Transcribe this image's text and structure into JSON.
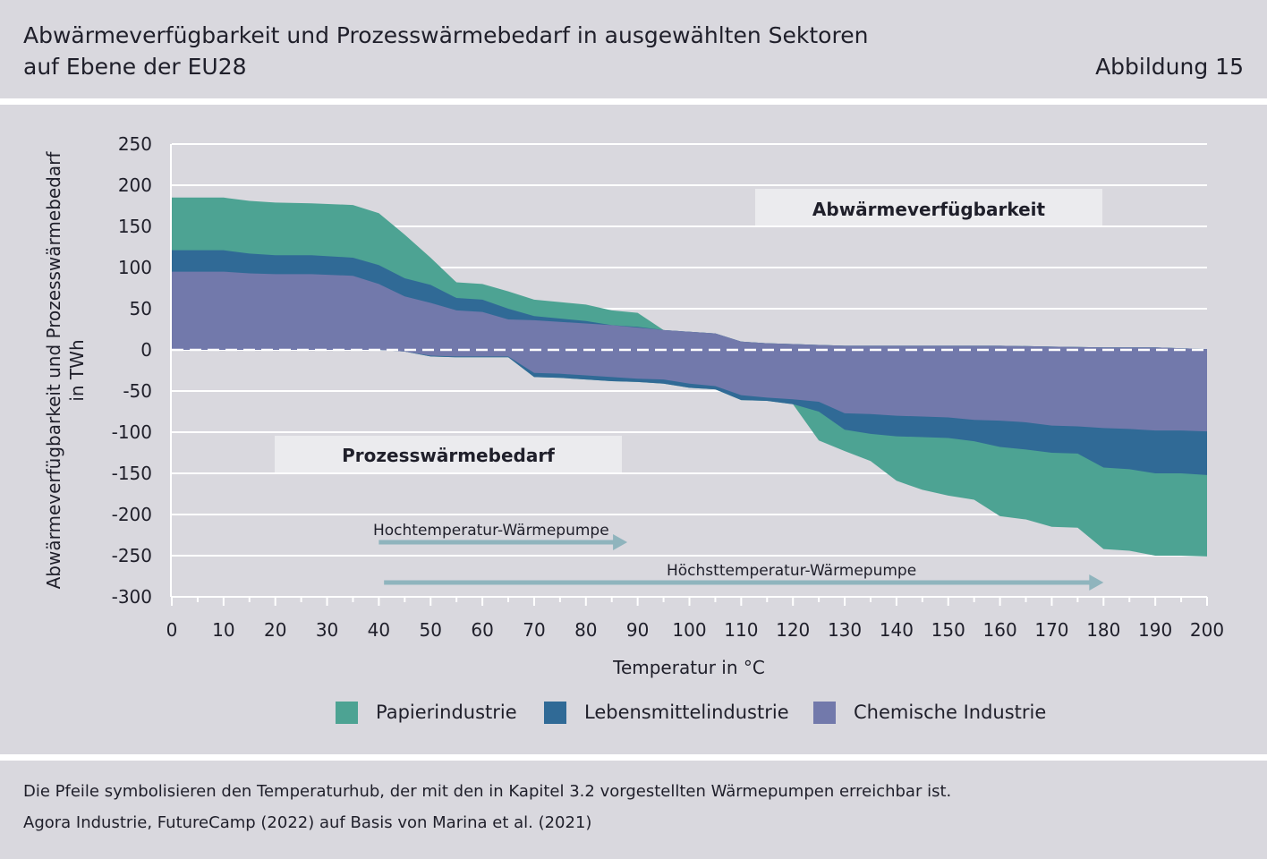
{
  "header": {
    "title_line1": "Abwärmeverfügbarkeit und Prozesswärmebedarf in ausgewählten Sektoren",
    "title_line2": "auf Ebene der EU28",
    "figure_label": "Abbildung 15"
  },
  "footer": {
    "note": "Die Pfeile symbolisieren den Temperaturhub, der mit den in Kapitel 3.2 vorgestellten Wärmepumpen erreichbar ist.",
    "source": "Agora Industrie, FutureCamp (2022) auf Basis von Marina et al. (2021)"
  },
  "chart_data": {
    "type": "area",
    "title": "Abwärmeverfügbarkeit und Prozesswärmebedarf in ausgewählten Sektoren auf Ebene der EU28",
    "xlabel": "Temperatur in °C",
    "ylabel_line1": "Abwärmeverfügbarkeit und Prozesswärmebedarf",
    "ylabel_line2": "in TWh",
    "xlim": [
      0,
      200
    ],
    "ylim": [
      -300,
      250
    ],
    "x_ticks": [
      0,
      10,
      20,
      30,
      40,
      50,
      60,
      70,
      80,
      90,
      100,
      110,
      120,
      130,
      140,
      150,
      160,
      170,
      180,
      190,
      200
    ],
    "y_ticks": [
      250,
      200,
      150,
      100,
      50,
      0,
      -50,
      -100,
      -150,
      -200,
      -250,
      -300
    ],
    "y_tick_labels": [
      "250",
      "200",
      "150",
      "100",
      "50",
      "0",
      "-50",
      "-100",
      "-150",
      "-200",
      "-250",
      "-300"
    ],
    "grid": true,
    "stacking": "cumulative",
    "colors": {
      "papier": "#4da393",
      "lebensmittel": "#306a96",
      "chemie": "#7279ab",
      "arrow": "#8fb4bd",
      "label_box": "#ebebee"
    },
    "waste_heat_top": {
      "x": [
        0,
        10,
        15,
        20,
        27,
        35,
        40,
        45,
        50,
        55,
        60,
        65,
        70,
        75,
        80,
        85,
        90,
        95,
        100,
        105,
        110,
        115,
        120,
        125,
        130,
        140,
        150,
        160,
        170,
        180,
        190,
        200
      ],
      "chemie": [
        95,
        95,
        93,
        92,
        92,
        90,
        80,
        65,
        57,
        48,
        46,
        37,
        36,
        34,
        32,
        30,
        27,
        24,
        22,
        20,
        10,
        8,
        7,
        6,
        5,
        5,
        5,
        5,
        4,
        3,
        3,
        1
      ],
      "lebensmittel": [
        121,
        121,
        117,
        115,
        115,
        112,
        103,
        87,
        79,
        63,
        61,
        50,
        41,
        38,
        35,
        30,
        28,
        24,
        22,
        20,
        10,
        8,
        7,
        6,
        5,
        5,
        5,
        5,
        4,
        3,
        3,
        1
      ],
      "papier": [
        185,
        185,
        181,
        179,
        178,
        176,
        166,
        140,
        112,
        82,
        80,
        71,
        61,
        58,
        55,
        48,
        45,
        24,
        22,
        20,
        10,
        8,
        7,
        6,
        5,
        5,
        5,
        5,
        4,
        3,
        3,
        1
      ]
    },
    "process_heat_bottom": {
      "x": [
        40,
        45,
        50,
        55,
        60,
        65,
        70,
        75,
        80,
        85,
        90,
        95,
        100,
        105,
        110,
        115,
        120,
        125,
        130,
        135,
        140,
        145,
        150,
        155,
        160,
        165,
        170,
        175,
        180,
        185,
        190,
        195,
        200
      ],
      "chemie": [
        0,
        -2,
        -7,
        -8,
        -8,
        -8,
        -28,
        -29,
        -31,
        -33,
        -35,
        -36,
        -41,
        -44,
        -55,
        -58,
        -60,
        -63,
        -77,
        -78,
        -80,
        -81,
        -82,
        -85,
        -86,
        -88,
        -92,
        -93,
        -95,
        -96,
        -98,
        -98,
        -99
      ],
      "lebensmittel": [
        0,
        -2,
        -8,
        -9,
        -9,
        -9,
        -33,
        -34,
        -36,
        -38,
        -39,
        -41,
        -46,
        -48,
        -61,
        -62,
        -66,
        -75,
        -97,
        -102,
        -105,
        -106,
        -107,
        -111,
        -118,
        -121,
        -125,
        -126,
        -143,
        -145,
        -150,
        -150,
        -152
      ],
      "papier": [
        0,
        -2,
        -8,
        -9,
        -9,
        -9,
        -33,
        -34,
        -36,
        -38,
        -39,
        -41,
        -46,
        -48,
        -61,
        -62,
        -66,
        -110,
        -123,
        -135,
        -159,
        -170,
        -177,
        -182,
        -202,
        -206,
        -215,
        -216,
        -242,
        -244,
        -250,
        -250,
        -251
      ]
    },
    "annotations": {
      "waste_heat_label": "Abwärmeverfügbarkeit",
      "process_heat_label": "Prozesswärmebedarf",
      "arrow1": {
        "label": "Hochtemperatur-Wärmepumpe",
        "from": 40,
        "to": 88
      },
      "arrow2": {
        "label": "Höchsttemperatur-Wärmepumpe",
        "from": 41,
        "to": 180
      }
    },
    "legend": {
      "placement": "bottom",
      "items": [
        {
          "label": "Papierindustrie",
          "color": "#4da393"
        },
        {
          "label": "Lebensmittelindustrie",
          "color": "#306a96"
        },
        {
          "label": "Chemische Industrie",
          "color": "#7279ab"
        }
      ]
    }
  }
}
